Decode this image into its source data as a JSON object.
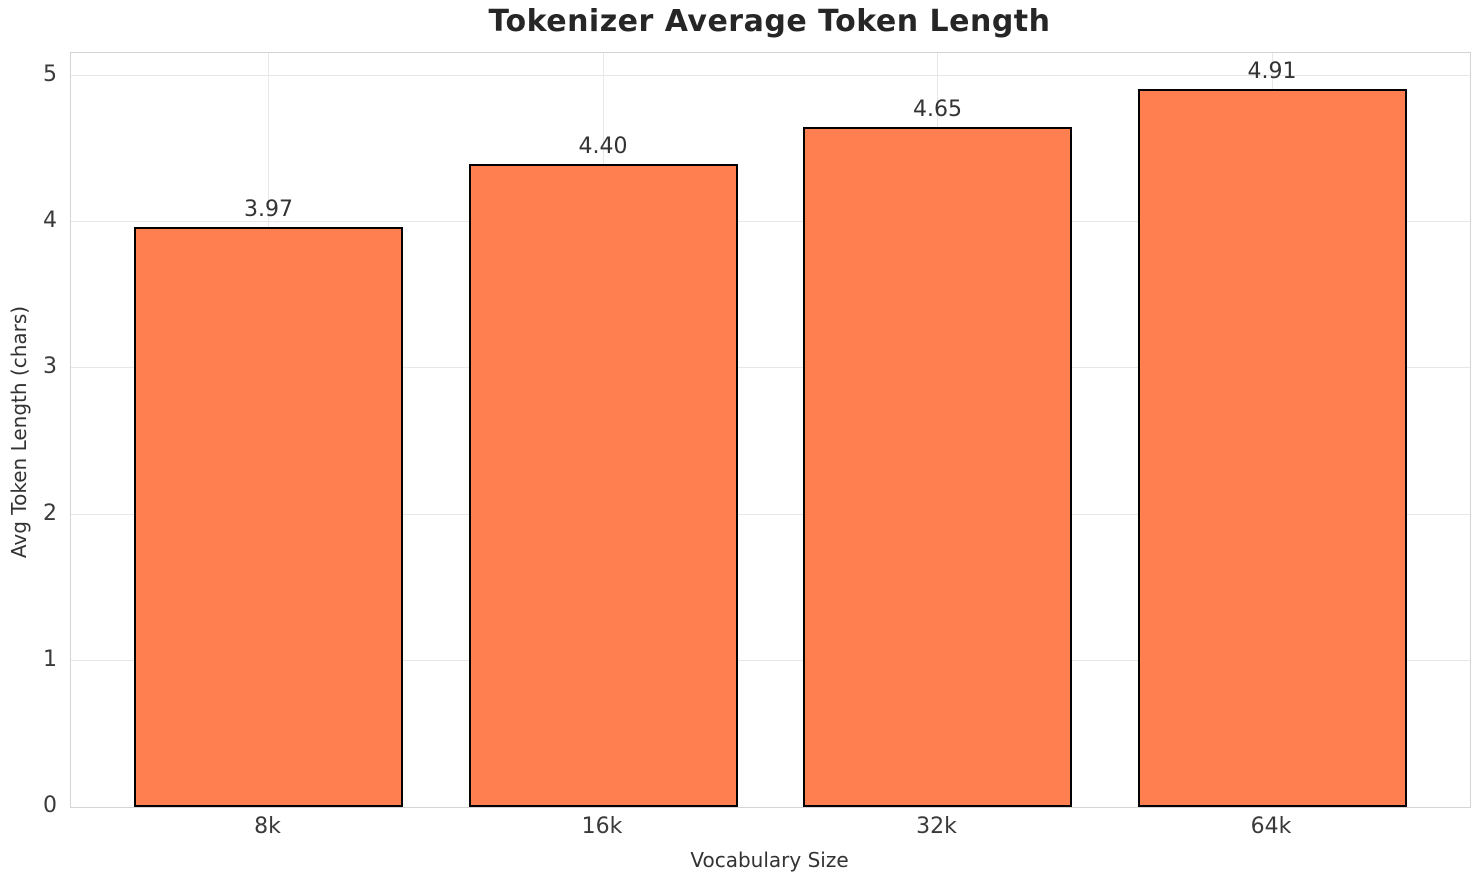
{
  "chart_data": {
    "type": "bar",
    "title": "Tokenizer Average Token Length",
    "xlabel": "Vocabulary Size",
    "ylabel": "Avg Token Length (chars)",
    "categories": [
      "8k",
      "16k",
      "32k",
      "64k"
    ],
    "values": [
      3.97,
      4.4,
      4.65,
      4.91
    ],
    "value_labels": [
      "3.97",
      "4.40",
      "4.65",
      "4.91"
    ],
    "yticks": [
      0,
      1,
      2,
      3,
      4,
      5
    ],
    "ylim": [
      0,
      5.16
    ],
    "grid": true,
    "legend": "none",
    "colors": {
      "bar_fill": "#FF7F50",
      "bar_edge": "#000000",
      "grid_line": "#E7E7E7",
      "axis_spine": "#D4D4D4",
      "title_text": "#262626",
      "label_text": "#333333",
      "background": "#FFFFFF"
    }
  }
}
